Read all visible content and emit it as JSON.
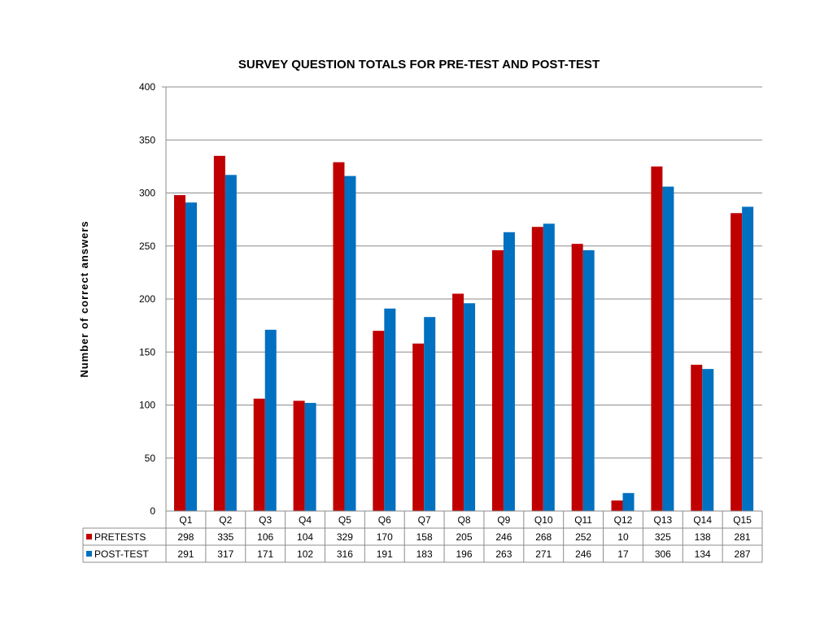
{
  "chart_data": {
    "type": "bar",
    "title": "SURVEY QUESTION TOTALS FOR PRE-TEST AND POST-TEST",
    "xlabel": "",
    "ylabel": "Number of correct answers",
    "ylim": [
      0,
      400
    ],
    "yticks": [
      "0",
      "50",
      "100",
      "150",
      "200",
      "250",
      "300",
      "350",
      "400"
    ],
    "grid": true,
    "legend": "data-table",
    "categories": [
      "Q1",
      "Q2",
      "Q3",
      "Q4",
      "Q5",
      "Q6",
      "Q7",
      "Q8",
      "Q9",
      "Q10",
      "Q11",
      "Q12",
      "Q13",
      "Q14",
      "Q15"
    ],
    "series": [
      {
        "name": "PRETESTS",
        "color": "#c00000",
        "values": [
          298,
          335,
          106,
          104,
          329,
          170,
          158,
          205,
          246,
          268,
          252,
          10,
          325,
          138,
          281
        ]
      },
      {
        "name": "POST-TEST",
        "color": "#0070c0",
        "values": [
          291,
          317,
          171,
          102,
          316,
          191,
          183,
          196,
          263,
          271,
          246,
          17,
          306,
          134,
          287
        ]
      }
    ]
  }
}
